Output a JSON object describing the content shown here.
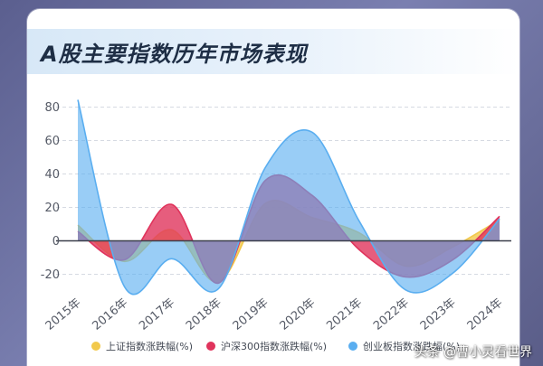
{
  "header": {
    "title": "A股主要指数历年市场表现"
  },
  "watermark": "头条 @曹小灵看世界",
  "chart_data": {
    "type": "area",
    "title": "A股主要指数历年市场表现",
    "categories": [
      "2015年",
      "2016年",
      "2017年",
      "2018年",
      "2019年",
      "2020年",
      "2021年",
      "2022年",
      "2023年",
      "2024年"
    ],
    "y_ticks": [
      80,
      60,
      40,
      20,
      0,
      -20
    ],
    "ylim": [
      -30,
      85
    ],
    "grid": "horizontal-dashed",
    "legend_position": "bottom",
    "series": [
      {
        "name": "上证指数涨跌幅(%)",
        "color": "#f2c94c",
        "values": [
          9.4,
          -12.3,
          6.6,
          -24.6,
          22.3,
          13.9,
          4.8,
          -15.1,
          -3.7,
          12.7
        ]
      },
      {
        "name": "沪深300指数涨跌幅(%)",
        "color": "#e0345c",
        "values": [
          5.6,
          -11.3,
          21.8,
          -25.3,
          36.1,
          27.2,
          -5.2,
          -21.6,
          -11.4,
          14.7
        ]
      },
      {
        "name": "创业板指数涨跌幅(%)",
        "color": "#5aaef0",
        "values": [
          84.4,
          -27.7,
          -10.7,
          -28.7,
          43.8,
          65.0,
          12.0,
          -29.4,
          -19.4,
          13.2
        ]
      }
    ]
  }
}
